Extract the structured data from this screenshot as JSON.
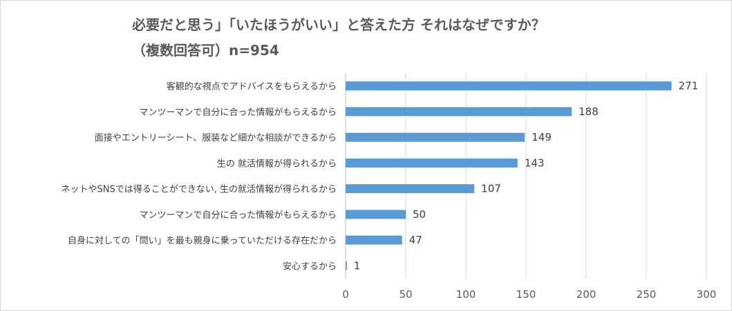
{
  "chart_data": {
    "type": "bar",
    "orientation": "horizontal",
    "title_line1": "必要だと思う」「いたほうがいい」と答えた方 それはなぜですか？",
    "title_line2": "（複数回答可）n=954",
    "categories": [
      "客観的な視点でアドバイスをもらえるから",
      "マンツーマンで自分に合った情報がもらえるから",
      "面接やエントリーシート、服装など細かな相談ができるから",
      "生の 就活情報が得られるから",
      "ネットやSNSでは得ることができない, 生の就活情報が得られるから",
      "マンツーマンで自分に合った情報がもらえるから",
      "自身に対しての「問い」を最も親身に乗っていただける存在だから",
      "安心するから"
    ],
    "values": [
      271,
      188,
      149,
      143,
      107,
      50,
      47,
      1
    ],
    "xlim": [
      0,
      300
    ],
    "xticks": [
      0,
      50,
      100,
      150,
      200,
      250,
      300
    ],
    "grid": true,
    "bar_color": "#5b9bd5"
  }
}
